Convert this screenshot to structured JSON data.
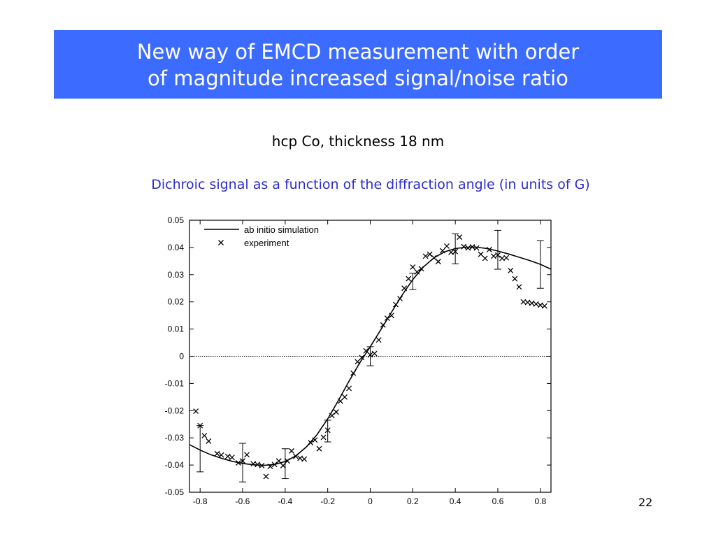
{
  "slide": {
    "title_line1": "New way of EMCD measurement with order",
    "title_line2": "of magnitude increased signal/noise ratio",
    "subtitle": "hcp Co, thickness 18 nm",
    "caption": "Dichroic signal as a function of the diffraction angle (in units of G)",
    "page_number": "22",
    "banner_color": "#3b6cff",
    "caption_color": "#2b2bcf"
  },
  "chart_data": {
    "type": "line",
    "title": "",
    "xlabel": "",
    "ylabel": "",
    "xlim": [
      -0.85,
      0.85
    ],
    "ylim": [
      -0.05,
      0.05
    ],
    "x_ticks": [
      -0.8,
      -0.6,
      -0.4,
      -0.2,
      0,
      0.2,
      0.4,
      0.6,
      0.8
    ],
    "x_tick_labels": [
      "-0.8",
      "-0.6",
      "-0.4",
      "-0.2",
      "0",
      "0.2",
      "0.4",
      "0.6",
      "0.8"
    ],
    "y_ticks": [
      -0.05,
      -0.04,
      -0.03,
      -0.02,
      -0.01,
      0,
      0.01,
      0.02,
      0.03,
      0.04,
      0.05
    ],
    "y_tick_labels": [
      "-0.05",
      "-0.04",
      "-0.03",
      "-0.02",
      "-0.01",
      "0",
      "0.01",
      "0.02",
      "0.03",
      "0.04",
      "0.05"
    ],
    "grid": false,
    "legend_position": "top-left",
    "zero_line": true,
    "series": [
      {
        "name": "ab initio simulation",
        "type": "line",
        "x": [
          -0.85,
          -0.8,
          -0.75,
          -0.7,
          -0.65,
          -0.6,
          -0.55,
          -0.5,
          -0.45,
          -0.4,
          -0.35,
          -0.3,
          -0.25,
          -0.2,
          -0.15,
          -0.1,
          -0.05,
          0,
          0.05,
          0.1,
          0.15,
          0.2,
          0.25,
          0.3,
          0.35,
          0.4,
          0.45,
          0.5,
          0.55,
          0.6,
          0.65,
          0.7,
          0.75,
          0.8,
          0.85
        ],
        "y": [
          -0.0325,
          -0.0345,
          -0.0362,
          -0.0375,
          -0.0386,
          -0.0394,
          -0.0399,
          -0.0401,
          -0.0398,
          -0.0387,
          -0.0366,
          -0.0333,
          -0.0288,
          -0.023,
          -0.0163,
          -0.0092,
          -0.0025,
          0.0035,
          0.0098,
          0.0162,
          0.0225,
          0.0282,
          0.0328,
          0.0362,
          0.0384,
          0.0396,
          0.0401,
          0.0401,
          0.0396,
          0.0387,
          0.0376,
          0.0364,
          0.0352,
          0.0338,
          0.032
        ]
      },
      {
        "name": "experiment",
        "type": "scatter",
        "marker": "x",
        "x": [
          -0.82,
          -0.8,
          -0.78,
          -0.76,
          -0.72,
          -0.7,
          -0.67,
          -0.65,
          -0.62,
          -0.6,
          -0.58,
          -0.55,
          -0.53,
          -0.51,
          -0.49,
          -0.47,
          -0.45,
          -0.43,
          -0.41,
          -0.39,
          -0.37,
          -0.35,
          -0.33,
          -0.31,
          -0.28,
          -0.26,
          -0.24,
          -0.22,
          -0.2,
          -0.18,
          -0.16,
          -0.14,
          -0.12,
          -0.1,
          -0.08,
          -0.06,
          -0.04,
          -0.02,
          0,
          0.02,
          0.04,
          0.06,
          0.08,
          0.1,
          0.12,
          0.14,
          0.16,
          0.18,
          0.2,
          0.22,
          0.24,
          0.26,
          0.28,
          0.3,
          0.32,
          0.34,
          0.36,
          0.38,
          0.4,
          0.42,
          0.44,
          0.46,
          0.48,
          0.5,
          0.52,
          0.54,
          0.56,
          0.58,
          0.6,
          0.62,
          0.64,
          0.66,
          0.68,
          0.7,
          0.72,
          0.74,
          0.76,
          0.78,
          0.8,
          0.82
        ],
        "y": [
          -0.0202,
          -0.0255,
          -0.0292,
          -0.0312,
          -0.0358,
          -0.0363,
          -0.0368,
          -0.0372,
          -0.0392,
          -0.0385,
          -0.0362,
          -0.0395,
          -0.0398,
          -0.0402,
          -0.0442,
          -0.0405,
          -0.0398,
          -0.0385,
          -0.0402,
          -0.0385,
          -0.0348,
          -0.0368,
          -0.0375,
          -0.0378,
          -0.0318,
          -0.0308,
          -0.034,
          -0.0298,
          -0.0272,
          -0.0218,
          -0.0205,
          -0.0165,
          -0.015,
          -0.0118,
          -0.0062,
          -0.002,
          -0.0005,
          0.002,
          0.0005,
          0.001,
          0.006,
          0.0115,
          0.014,
          0.015,
          0.019,
          0.0212,
          0.025,
          0.0285,
          0.0328,
          0.031,
          0.0322,
          0.0368,
          0.0375,
          0.0362,
          0.0348,
          0.0388,
          0.0405,
          0.0382,
          0.0385,
          0.0438,
          0.0403,
          0.0398,
          0.0402,
          0.0398,
          0.0375,
          0.036,
          0.0392,
          0.0368,
          0.0372,
          0.036,
          0.0362,
          0.0315,
          0.0285,
          0.0255,
          0.02,
          0.0198,
          0.0195,
          0.0192,
          0.0188,
          0.0185
        ]
      }
    ],
    "error_bars": [
      {
        "x": -0.8,
        "y_low": -0.0425,
        "y_high": -0.0255
      },
      {
        "x": -0.6,
        "y_low": -0.0462,
        "y_high": -0.032
      },
      {
        "x": -0.4,
        "y_low": -0.045,
        "y_high": -0.034
      },
      {
        "x": -0.2,
        "y_low": -0.0315,
        "y_high": -0.0235
      },
      {
        "x": 0,
        "y_low": -0.0035,
        "y_high": 0.0035
      },
      {
        "x": 0.2,
        "y_low": 0.0245,
        "y_high": 0.0305
      },
      {
        "x": 0.4,
        "y_low": 0.034,
        "y_high": 0.045
      },
      {
        "x": 0.6,
        "y_low": 0.032,
        "y_high": 0.0463
      },
      {
        "x": 0.8,
        "y_low": 0.025,
        "y_high": 0.0425
      }
    ]
  }
}
